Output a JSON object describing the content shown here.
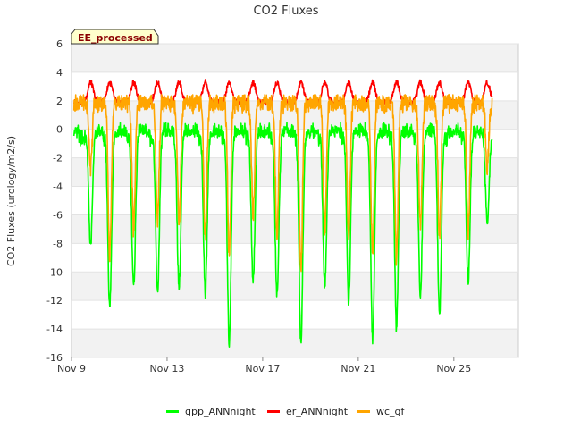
{
  "chart_data": {
    "type": "line",
    "title": "CO2 Fluxes",
    "xlabel": "",
    "ylabel": "CO2 Fluxes (urology/m2/s)",
    "badge": "EE_processed",
    "ylim": [
      -16,
      6
    ],
    "yticks": [
      6,
      4,
      2,
      0,
      -2,
      -4,
      -6,
      -8,
      -10,
      -12,
      -14,
      -16
    ],
    "xlim_days": [
      9,
      27.7
    ],
    "xticks": [
      {
        "label": "Nov 9",
        "day": 9
      },
      {
        "label": "Nov 13",
        "day": 13
      },
      {
        "label": "Nov 17",
        "day": 17
      },
      {
        "label": "Nov 21",
        "day": 21
      },
      {
        "label": "Nov 25",
        "day": 25
      }
    ],
    "data_range_days": [
      9.1,
      26.6
    ],
    "daily_minimum": {
      "days": [
        9.8,
        10.6,
        11.6,
        12.6,
        13.5,
        14.6,
        15.6,
        16.6,
        17.6,
        18.6,
        19.6,
        20.6,
        21.6,
        22.6,
        23.6,
        24.4,
        25.6,
        26.4
      ],
      "gpp_ANNnight": [
        -8.2,
        -12.4,
        -11,
        -11.4,
        -11,
        -11.5,
        -14.9,
        -10.5,
        -11.5,
        -14.9,
        -11,
        -12,
        -14.6,
        -13.8,
        -11.5,
        -12.8,
        -10.5,
        -6.6
      ],
      "wc_gf": [
        -4.5,
        -10.8,
        -9,
        -8.2,
        -8.4,
        -9.5,
        -10.7,
        -8,
        -9.5,
        -12,
        -9,
        -9.5,
        -11,
        -11,
        -8.8,
        -9.5,
        -9.2,
        -4.5
      ]
    },
    "series": [
      {
        "name": "gpp_ANNnight",
        "color": "#00ff00",
        "day_level": -0.5,
        "night_level": 0.0
      },
      {
        "name": "er_ANNnight",
        "color": "#ff0000",
        "day_level": 2.6,
        "night_level": 1.9
      },
      {
        "name": "wc_gf",
        "color": "#ffa500",
        "day_level": 1.8,
        "night_level": 1.8
      }
    ],
    "legend": [
      "gpp_ANNnight",
      "er_ANNnight",
      "wc_gf"
    ],
    "legend_position": "bottom"
  }
}
